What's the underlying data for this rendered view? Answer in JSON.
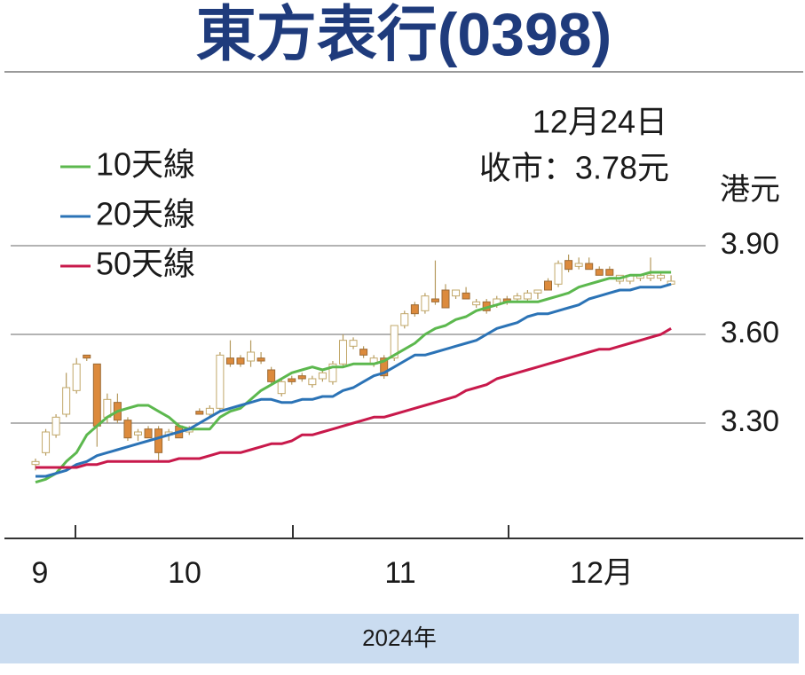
{
  "chart_data": {
    "type": "candlestick",
    "title": "東方表行(0398)",
    "date": "12月24日",
    "close_label": "收市：3.78元",
    "y_unit": "港元",
    "x_labels": [
      "9",
      "10",
      "11",
      "12月"
    ],
    "x_axis_title": "2024年",
    "ylim": [
      2.91,
      4.2
    ],
    "yticks": [
      {
        "value": 3.3,
        "label": "3.30"
      },
      {
        "value": 3.6,
        "label": "3.60"
      },
      {
        "value": 3.9,
        "label": "3.90"
      }
    ],
    "grid": true,
    "up_color": "#ffffff",
    "down_color": "#dc8a3c",
    "candles": {
      "open": [
        3.16,
        3.2,
        3.26,
        3.33,
        3.41,
        3.53,
        3.5,
        3.32,
        3.37,
        3.31,
        3.26,
        3.28,
        3.28,
        3.26,
        3.29,
        3.27,
        3.34,
        3.33,
        3.35,
        3.52,
        3.52,
        3.51,
        3.52,
        3.48,
        3.4,
        3.45,
        3.46,
        3.43,
        3.45,
        3.44,
        3.5,
        3.56,
        3.55,
        3.5,
        3.52,
        3.52,
        3.63,
        3.7,
        3.68,
        3.72,
        3.75,
        3.73,
        3.74,
        3.7,
        3.71,
        3.7,
        3.72,
        3.72,
        3.72,
        3.74,
        3.78,
        3.77,
        3.85,
        3.83,
        3.84,
        3.82,
        3.82,
        3.78,
        3.78,
        3.79,
        3.79,
        3.79,
        3.77
      ],
      "high": [
        3.18,
        3.28,
        3.33,
        3.47,
        3.52,
        3.53,
        3.5,
        3.4,
        3.4,
        3.32,
        3.28,
        3.29,
        3.29,
        3.28,
        3.3,
        3.29,
        3.35,
        3.36,
        3.54,
        3.58,
        3.53,
        3.58,
        3.54,
        3.49,
        3.45,
        3.46,
        3.47,
        3.46,
        3.48,
        3.51,
        3.6,
        3.59,
        3.56,
        3.53,
        3.53,
        3.63,
        3.68,
        3.71,
        3.74,
        3.85,
        3.77,
        3.75,
        3.76,
        3.72,
        3.72,
        3.73,
        3.73,
        3.74,
        3.75,
        3.75,
        3.79,
        3.85,
        3.87,
        3.86,
        3.86,
        3.83,
        3.83,
        3.8,
        3.8,
        3.8,
        3.86,
        3.81,
        3.8
      ],
      "low": [
        3.14,
        3.19,
        3.25,
        3.32,
        3.4,
        3.51,
        3.22,
        3.3,
        3.3,
        3.24,
        3.24,
        3.25,
        3.17,
        3.24,
        3.25,
        3.26,
        3.33,
        3.32,
        3.34,
        3.49,
        3.49,
        3.49,
        3.5,
        3.43,
        3.39,
        3.43,
        3.44,
        3.42,
        3.44,
        3.43,
        3.49,
        3.55,
        3.52,
        3.49,
        3.45,
        3.51,
        3.62,
        3.66,
        3.67,
        3.7,
        3.69,
        3.72,
        3.72,
        3.69,
        3.67,
        3.69,
        3.7,
        3.71,
        3.71,
        3.72,
        3.75,
        3.76,
        3.81,
        3.82,
        3.82,
        3.8,
        3.8,
        3.77,
        3.77,
        3.78,
        3.78,
        3.78,
        3.77
      ],
      "close": [
        3.17,
        3.27,
        3.32,
        3.42,
        3.5,
        3.52,
        3.29,
        3.38,
        3.31,
        3.25,
        3.27,
        3.25,
        3.2,
        3.27,
        3.25,
        3.28,
        3.33,
        3.35,
        3.53,
        3.5,
        3.5,
        3.54,
        3.51,
        3.44,
        3.44,
        3.44,
        3.45,
        3.45,
        3.47,
        3.5,
        3.58,
        3.58,
        3.53,
        3.52,
        3.46,
        3.63,
        3.67,
        3.67,
        3.73,
        3.71,
        3.69,
        3.75,
        3.72,
        3.71,
        3.68,
        3.72,
        3.71,
        3.73,
        3.74,
        3.75,
        3.75,
        3.84,
        3.82,
        3.84,
        3.82,
        3.8,
        3.8,
        3.8,
        3.8,
        3.8,
        3.8,
        3.8,
        3.78
      ]
    },
    "series": [
      {
        "name": "10天線",
        "color": "#5cb84e",
        "values": [
          3.1,
          3.11,
          3.13,
          3.17,
          3.2,
          3.26,
          3.29,
          3.32,
          3.34,
          3.35,
          3.36,
          3.36,
          3.34,
          3.32,
          3.29,
          3.28,
          3.28,
          3.28,
          3.32,
          3.34,
          3.35,
          3.38,
          3.41,
          3.43,
          3.45,
          3.47,
          3.48,
          3.49,
          3.48,
          3.49,
          3.49,
          3.5,
          3.5,
          3.5,
          3.51,
          3.53,
          3.55,
          3.57,
          3.6,
          3.62,
          3.63,
          3.65,
          3.66,
          3.68,
          3.69,
          3.7,
          3.71,
          3.71,
          3.71,
          3.71,
          3.72,
          3.73,
          3.74,
          3.76,
          3.77,
          3.78,
          3.79,
          3.79,
          3.8,
          3.8,
          3.81,
          3.81,
          3.81
        ]
      },
      {
        "name": "20天線",
        "color": "#2b73b6",
        "values": [
          3.12,
          3.12,
          3.13,
          3.14,
          3.16,
          3.17,
          3.19,
          3.2,
          3.21,
          3.22,
          3.23,
          3.24,
          3.25,
          3.26,
          3.27,
          3.28,
          3.3,
          3.32,
          3.34,
          3.35,
          3.36,
          3.37,
          3.38,
          3.38,
          3.37,
          3.37,
          3.38,
          3.38,
          3.39,
          3.39,
          3.41,
          3.42,
          3.44,
          3.46,
          3.47,
          3.49,
          3.51,
          3.53,
          3.53,
          3.54,
          3.55,
          3.56,
          3.57,
          3.58,
          3.6,
          3.62,
          3.63,
          3.64,
          3.66,
          3.67,
          3.67,
          3.68,
          3.69,
          3.7,
          3.72,
          3.73,
          3.74,
          3.75,
          3.75,
          3.76,
          3.76,
          3.76,
          3.77
        ]
      },
      {
        "name": "50天線",
        "color": "#c8194b",
        "values": [
          3.15,
          3.15,
          3.15,
          3.15,
          3.15,
          3.16,
          3.16,
          3.17,
          3.17,
          3.17,
          3.17,
          3.17,
          3.17,
          3.17,
          3.18,
          3.18,
          3.18,
          3.19,
          3.2,
          3.2,
          3.2,
          3.21,
          3.22,
          3.23,
          3.23,
          3.24,
          3.26,
          3.26,
          3.27,
          3.28,
          3.29,
          3.3,
          3.31,
          3.32,
          3.32,
          3.33,
          3.34,
          3.35,
          3.36,
          3.37,
          3.38,
          3.39,
          3.41,
          3.42,
          3.43,
          3.45,
          3.46,
          3.47,
          3.48,
          3.49,
          3.5,
          3.51,
          3.52,
          3.53,
          3.54,
          3.55,
          3.55,
          3.56,
          3.57,
          3.58,
          3.59,
          3.6,
          3.62
        ]
      }
    ]
  }
}
